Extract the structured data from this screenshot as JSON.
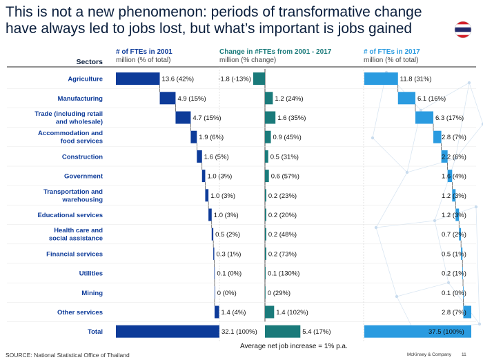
{
  "title": "This is not a new phenomenon: periods of transformative change have always led to jobs lost, but what’s important is jobs gained",
  "sectors_header": "Sectors",
  "source": "SOURCE: National Statistical Office of Thailand",
  "footnote": "Average net job increase = 1% p.a.",
  "brand": "McKinsey & Company",
  "page_number": "11",
  "chart_data": {
    "type": "bar",
    "orientation": "horizontal",
    "categories": [
      "Agriculture",
      "Manufacturing",
      "Trade (including retail and wholesale)",
      "Accommodation and food services",
      "Construction",
      "Government",
      "Transportation and warehousing",
      "Educational services",
      "Health care and social assistance",
      "Financial services",
      "Utilities",
      "Mining",
      "Other services",
      "Total"
    ],
    "panels": [
      {
        "title": "# of FTEs in 2001",
        "subtitle": "million (% of total)",
        "color": "#0d3b99",
        "values": [
          13.6,
          4.9,
          4.7,
          1.9,
          1.6,
          1.0,
          1.0,
          1.0,
          0.5,
          0.3,
          0.1,
          0.0,
          1.4,
          32.1
        ],
        "labels": [
          "13.6 (42%)",
          "4.9 (15%)",
          "4.7 (15%)",
          "1.9 (6%)",
          "1.6 (5%)",
          "1.0 (3%)",
          "1.0 (3%)",
          "1.0 (3%)",
          "0.5 (2%)",
          "0.3 (1%)",
          "0.1 (0%)",
          "0 (0%)",
          "1.4 (4%)",
          "32.1 (100%)"
        ]
      },
      {
        "title": "Change in #FTEs from 2001 - 2017",
        "subtitle": "million (% change)",
        "color": "#1a7a7a",
        "values": [
          -1.8,
          1.2,
          1.6,
          0.9,
          0.5,
          0.6,
          0.2,
          0.2,
          0.2,
          0.2,
          0.1,
          0.0,
          1.4,
          5.4
        ],
        "labels": [
          "-1.8 (-13%)",
          "1.2 (24%)",
          "1.6 (35%)",
          "0.9 (45%)",
          "0.5 (31%)",
          "0.6 (57%)",
          "0.2 (23%)",
          "0.2 (20%)",
          "0.2 (48%)",
          "0.2 (73%)",
          "0.1 (130%)",
          "0 (29%)",
          "1.4 (102%)",
          "5.4 (17%)"
        ]
      },
      {
        "title": "# of FTEs in 2017",
        "subtitle": "million (% of total)",
        "color": "#2a9be0",
        "values": [
          11.8,
          6.1,
          6.3,
          2.8,
          2.2,
          1.6,
          1.2,
          1.2,
          0.7,
          0.5,
          0.2,
          0.1,
          2.8,
          37.5
        ],
        "labels": [
          "11.8 (31%)",
          "6.1 (16%)",
          "6.3 (17%)",
          "2.8 (7%)",
          "2.2 (6%)",
          "1.6 (4%)",
          "1.2 (3%)",
          "1.2 (3%)",
          "0.7 (2%)",
          "0.5 (1%)",
          "0.2 (1%)",
          "0.1 (0%)",
          "2.8 (7%)",
          "37.5 (100%)"
        ]
      }
    ],
    "grid": false,
    "colors": {
      "title": "#0a1e3c",
      "sector_label": "#0d3b99",
      "header_2001": "#0d3b99",
      "header_change": "#1a7a7a",
      "header_2017": "#2a9be0",
      "connector": "#222222",
      "divider": "#bbbbbb"
    }
  }
}
